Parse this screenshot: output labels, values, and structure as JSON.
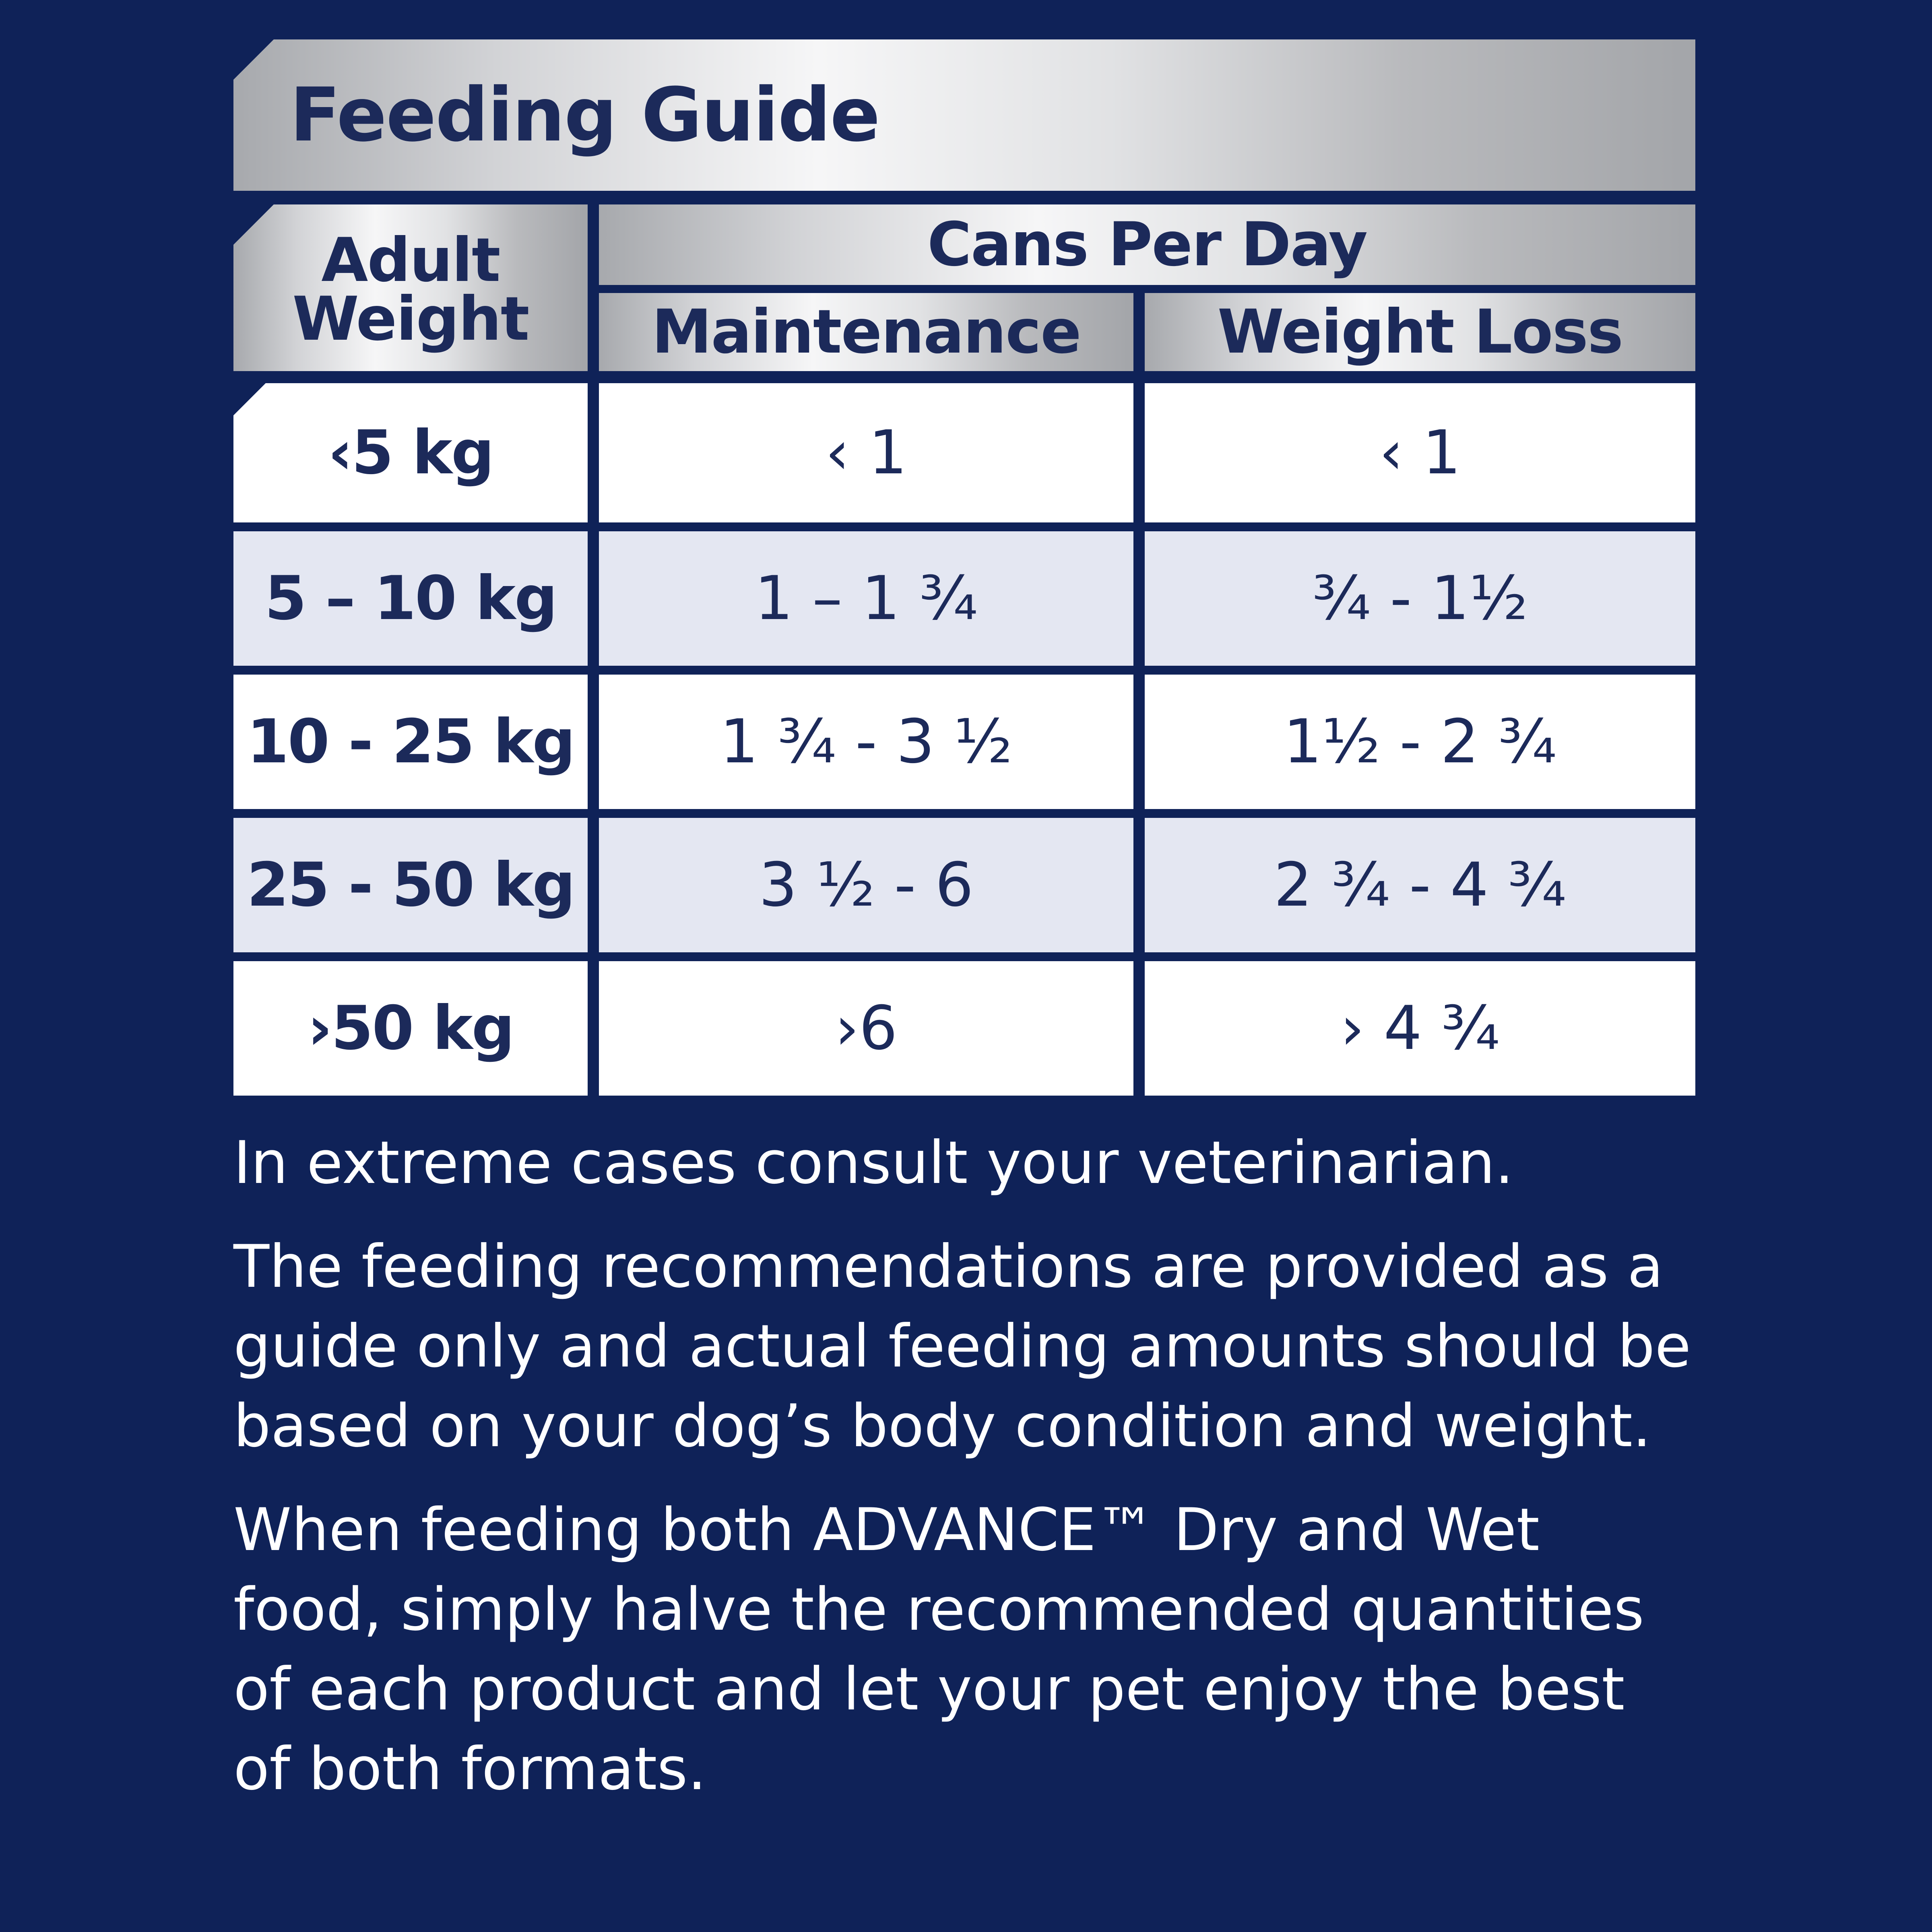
{
  "title": "Feeding Guide",
  "headers": {
    "weight_line1": "Adult",
    "weight_line2": "Weight",
    "cans": "Cans Per Day",
    "maintenance": "Maintenance",
    "weight_loss": "Weight Loss"
  },
  "rows": [
    {
      "weight": "‹5 kg",
      "maintenance": "‹ 1",
      "weight_loss": "‹ 1"
    },
    {
      "weight": "5 – 10 kg",
      "maintenance": "1 – 1 ¾",
      "weight_loss": "¾ - 1½"
    },
    {
      "weight": "10 - 25 kg",
      "maintenance": "1 ¾ - 3 ½",
      "weight_loss": "1½ - 2 ¾"
    },
    {
      "weight": "25 - 50 kg",
      "maintenance": "3 ½ - 6",
      "weight_loss": "2 ¾ - 4 ¾"
    },
    {
      "weight": "›50 kg",
      "maintenance": "›6",
      "weight_loss": "› 4 ¾"
    }
  ],
  "notes": [
    "In extreme cases consult your veterinarian.",
    "The feeding recommendations are provided as a guide only and actual feeding amounts should be based on your dog’s body condition and weight.",
    "When feeding both ADVANCE™ Dry and Wet food, simply halve the recommended quantities of each product and let your pet enjoy the best of both formats."
  ],
  "colors": {
    "background": "#0f2258",
    "text_dark": "#1c2a5a",
    "row_alt": "#e4e7f2"
  }
}
